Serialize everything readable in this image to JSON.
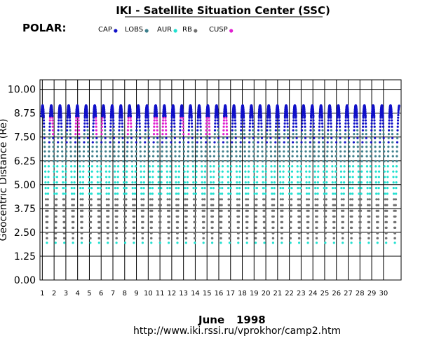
{
  "chart_data": {
    "type": "scatter",
    "title": "IKI - Satellite Situation Center (SSC)",
    "spacecraft_label": "POLAR:",
    "ylabel": "Geocentric Distance (Re)",
    "xlabel_month": "June",
    "xlabel_year": "1998",
    "url": "http://www.iki.rssi.ru/vprokhor/camp2.htm",
    "ylim": [
      0,
      10.5
    ],
    "yticks": [
      "10.00",
      "8.75",
      "7.50",
      "6.25",
      "5.00",
      "3.75",
      "2.50",
      "1.25",
      "0.00"
    ],
    "ytick_values": [
      10,
      8.75,
      7.5,
      6.25,
      5,
      3.75,
      2.5,
      1.25,
      0
    ],
    "xlim": [
      0.8,
      31.5
    ],
    "xticks": [
      "1",
      "2",
      "3",
      "4",
      "5",
      "6",
      "7",
      "8",
      "9",
      "10",
      "11",
      "12",
      "13",
      "14",
      "15",
      "16",
      "17",
      "18",
      "19",
      "20",
      "21",
      "22",
      "23",
      "24",
      "25",
      "26",
      "27",
      "28",
      "29",
      "30"
    ],
    "orbit_period_days": 0.7395,
    "first_apogee_day": 1.02,
    "apogee_re": 9.15,
    "perigee_re": 1.95,
    "legend": [
      {
        "name": "CAP",
        "color": "#1010c8"
      },
      {
        "name": "LOBS",
        "color": "#3c7f8c"
      },
      {
        "name": "AUR",
        "color": "#20e0d0"
      },
      {
        "name": "RB",
        "color": "#707070"
      },
      {
        "name": "CUSP",
        "color": "#e020d0"
      }
    ],
    "regions_re": {
      "RB": [
        2.3,
        4.6
      ],
      "AUR": [
        4.3,
        6.4
      ],
      "LOBS": [
        6.0,
        8.4
      ],
      "CAP": [
        8.0,
        9.2
      ],
      "CUSP": [
        7.6,
        8.6
      ]
    },
    "cusp_days": [
      2.0,
      4.1,
      5.8,
      8.2,
      10.5,
      11.5,
      13.1,
      14.9,
      16.6
    ]
  }
}
